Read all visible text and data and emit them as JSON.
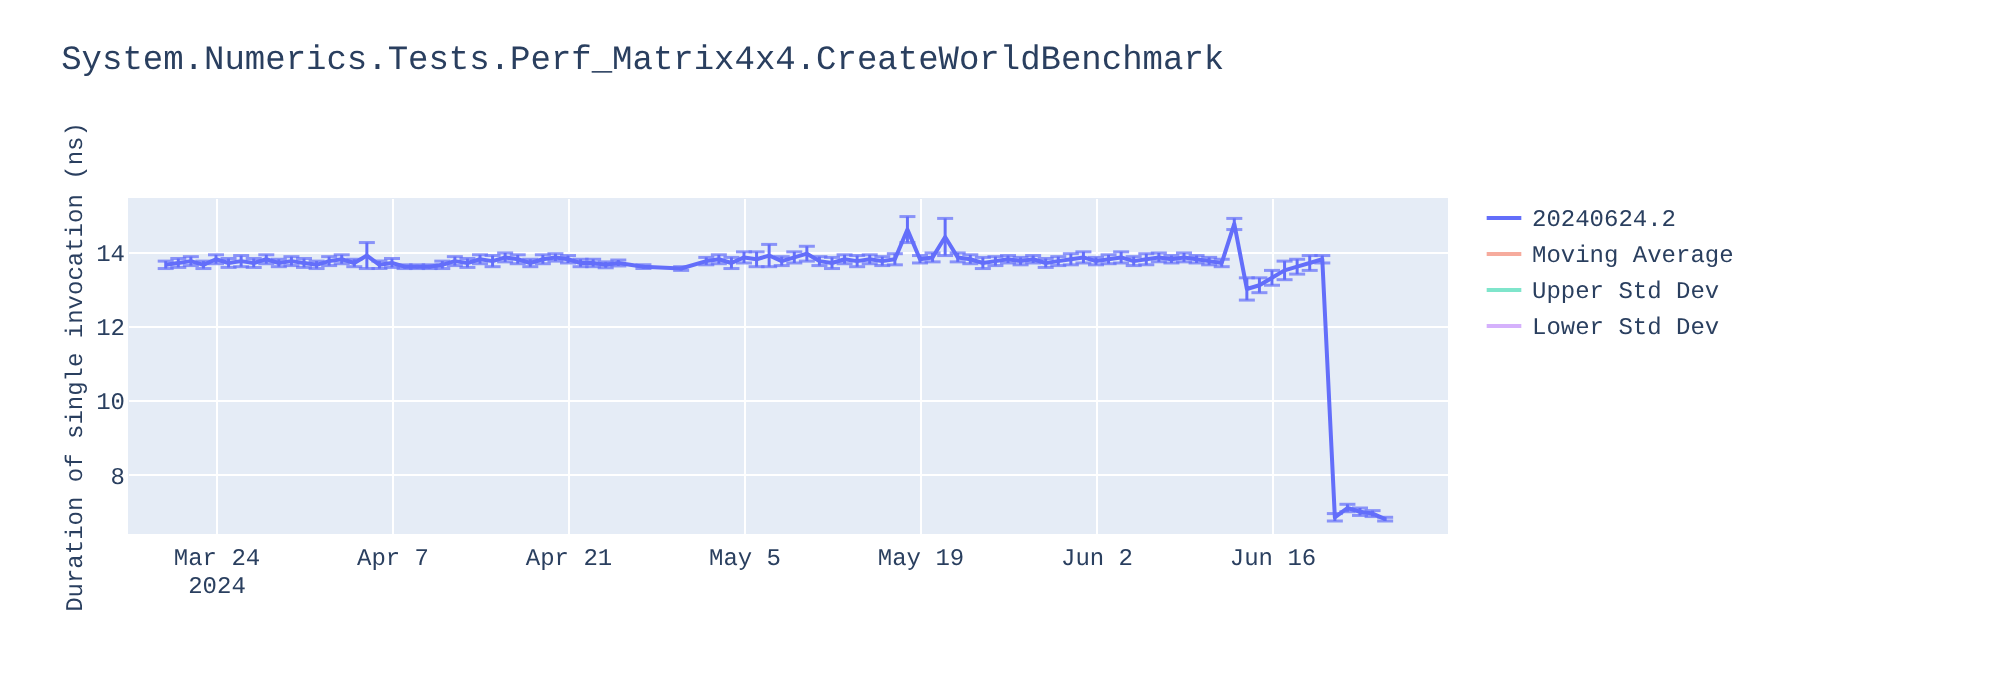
{
  "chart_data": {
    "type": "line",
    "title": "System.Numerics.Tests.Perf_Matrix4x4.CreateWorldBenchmark",
    "ylabel": "Duration of single invocation (ns)",
    "x": [
      "2024-03-20",
      "2024-03-21",
      "2024-03-22",
      "2024-03-23",
      "2024-03-24",
      "2024-03-25",
      "2024-03-26",
      "2024-03-27",
      "2024-03-28",
      "2024-03-29",
      "2024-03-30",
      "2024-03-31",
      "2024-04-01",
      "2024-04-02",
      "2024-04-03",
      "2024-04-04",
      "2024-04-05",
      "2024-04-06",
      "2024-04-07",
      "2024-04-08",
      "2024-04-09",
      "2024-04-10",
      "2024-04-11",
      "2024-04-12",
      "2024-04-13",
      "2024-04-14",
      "2024-04-15",
      "2024-04-16",
      "2024-04-17",
      "2024-04-18",
      "2024-04-19",
      "2024-04-20",
      "2024-04-21",
      "2024-04-22",
      "2024-04-23",
      "2024-04-24",
      "2024-04-25",
      "2024-04-27",
      "2024-04-30",
      "2024-05-02",
      "2024-05-03",
      "2024-05-04",
      "2024-05-05",
      "2024-05-06",
      "2024-05-07",
      "2024-05-08",
      "2024-05-09",
      "2024-05-10",
      "2024-05-11",
      "2024-05-12",
      "2024-05-13",
      "2024-05-14",
      "2024-05-15",
      "2024-05-16",
      "2024-05-17",
      "2024-05-18",
      "2024-05-19",
      "2024-05-20",
      "2024-05-21",
      "2024-05-22",
      "2024-05-23",
      "2024-05-24",
      "2024-05-25",
      "2024-05-26",
      "2024-05-27",
      "2024-05-28",
      "2024-05-29",
      "2024-05-30",
      "2024-05-31",
      "2024-06-01",
      "2024-06-02",
      "2024-06-03",
      "2024-06-04",
      "2024-06-05",
      "2024-06-06",
      "2024-06-07",
      "2024-06-08",
      "2024-06-09",
      "2024-06-10",
      "2024-06-11",
      "2024-06-12",
      "2024-06-13",
      "2024-06-14",
      "2024-06-15",
      "2024-06-16",
      "2024-06-17",
      "2024-06-18",
      "2024-06-19",
      "2024-06-20",
      "2024-06-21",
      "2024-06-22",
      "2024-06-23",
      "2024-06-24",
      "2024-06-25"
    ],
    "series": [
      {
        "name": "20240624.2",
        "color": "#636efa",
        "values": [
          13.65,
          13.7,
          13.75,
          13.65,
          13.8,
          13.7,
          13.75,
          13.7,
          13.8,
          13.7,
          13.75,
          13.7,
          13.65,
          13.75,
          13.8,
          13.7,
          13.9,
          13.65,
          13.7,
          13.6,
          13.6,
          13.6,
          13.65,
          13.75,
          13.7,
          13.8,
          13.75,
          13.85,
          13.8,
          13.7,
          13.8,
          13.85,
          13.8,
          13.7,
          13.7,
          13.65,
          13.7,
          13.6,
          13.55,
          13.75,
          13.8,
          13.7,
          13.85,
          13.8,
          13.9,
          13.75,
          13.85,
          13.95,
          13.75,
          13.7,
          13.8,
          13.75,
          13.8,
          13.75,
          13.8,
          14.6,
          13.8,
          13.85,
          14.4,
          13.85,
          13.8,
          13.7,
          13.75,
          13.8,
          13.75,
          13.8,
          13.7,
          13.75,
          13.8,
          13.85,
          13.75,
          13.8,
          13.85,
          13.75,
          13.8,
          13.85,
          13.8,
          13.85,
          13.8,
          13.75,
          13.7,
          14.75,
          13.0,
          13.1,
          13.3,
          13.5,
          13.6,
          13.7,
          13.8,
          6.85,
          7.1,
          7.0,
          6.95,
          6.8
        ],
        "errors": [
          0.1,
          0.12,
          0.12,
          0.1,
          0.12,
          0.12,
          0.15,
          0.12,
          0.12,
          0.1,
          0.12,
          0.12,
          0.1,
          0.12,
          0.12,
          0.1,
          0.35,
          0.1,
          0.12,
          0.05,
          0.05,
          0.05,
          0.1,
          0.12,
          0.12,
          0.12,
          0.15,
          0.12,
          0.12,
          0.1,
          0.12,
          0.1,
          0.1,
          0.1,
          0.1,
          0.08,
          0.08,
          0.05,
          0.05,
          0.1,
          0.12,
          0.15,
          0.15,
          0.2,
          0.3,
          0.12,
          0.15,
          0.2,
          0.12,
          0.15,
          0.12,
          0.15,
          0.12,
          0.12,
          0.15,
          0.35,
          0.1,
          0.12,
          0.5,
          0.12,
          0.12,
          0.15,
          0.12,
          0.1,
          0.1,
          0.1,
          0.12,
          0.12,
          0.15,
          0.15,
          0.1,
          0.12,
          0.15,
          0.12,
          0.15,
          0.12,
          0.1,
          0.12,
          0.1,
          0.1,
          0.1,
          0.15,
          0.3,
          0.2,
          0.2,
          0.25,
          0.2,
          0.2,
          0.1,
          0.1,
          0.1,
          0.1,
          0.08,
          0.05
        ]
      },
      {
        "name": "Moving Average",
        "color": "#f6ab9d",
        "values": [
          null,
          null,
          null,
          null,
          null,
          null,
          null,
          null,
          null,
          null,
          null,
          null,
          null,
          null,
          null,
          null,
          null,
          null,
          null,
          null,
          null,
          null,
          null,
          null,
          null,
          null,
          null,
          null,
          null,
          null,
          null,
          null,
          null,
          null,
          null,
          null,
          null,
          null,
          null,
          null,
          null,
          null,
          null,
          null,
          null,
          null,
          null,
          null,
          null,
          null,
          null,
          null,
          null,
          null,
          null,
          null,
          null,
          null,
          null,
          null,
          null,
          null,
          null,
          null,
          null,
          null,
          null,
          null,
          null,
          null,
          null,
          null,
          null,
          null,
          null,
          null,
          null,
          null,
          null,
          null,
          null,
          null,
          null,
          null,
          null,
          null,
          null,
          null,
          null,
          null,
          null,
          null,
          null,
          null
        ]
      },
      {
        "name": "Upper Std Dev",
        "color": "#7fe5cb",
        "values": [
          null,
          null,
          null,
          null,
          null,
          null,
          null,
          null,
          null,
          null,
          null,
          null,
          null,
          null,
          null,
          null,
          null,
          null,
          null,
          null,
          null,
          null,
          null,
          null,
          null,
          null,
          null,
          null,
          null,
          null,
          null,
          null,
          null,
          null,
          null,
          null,
          null,
          null,
          null,
          null,
          null,
          null,
          null,
          null,
          null,
          null,
          null,
          null,
          null,
          null,
          null,
          null,
          null,
          null,
          null,
          null,
          null,
          null,
          null,
          null,
          null,
          null,
          null,
          null,
          null,
          null,
          null,
          null,
          null,
          null,
          null,
          null,
          null,
          null,
          null,
          null,
          null,
          null,
          null,
          null,
          null,
          null,
          null,
          null,
          null,
          null,
          null,
          null,
          null,
          null,
          null,
          null,
          null,
          null
        ]
      },
      {
        "name": "Lower Std Dev",
        "color": "#d5b1fc",
        "values": [
          null,
          null,
          null,
          null,
          null,
          null,
          null,
          null,
          null,
          null,
          null,
          null,
          null,
          null,
          null,
          null,
          null,
          null,
          null,
          null,
          null,
          null,
          null,
          null,
          null,
          null,
          null,
          null,
          null,
          null,
          null,
          null,
          null,
          null,
          null,
          null,
          null,
          null,
          null,
          null,
          null,
          null,
          null,
          null,
          null,
          null,
          null,
          null,
          null,
          null,
          null,
          null,
          null,
          null,
          null,
          null,
          null,
          null,
          null,
          null,
          null,
          null,
          null,
          null,
          null,
          null,
          null,
          null,
          null,
          null,
          null,
          null,
          null,
          null,
          null,
          null,
          null,
          null,
          null,
          null,
          null,
          null,
          null,
          null,
          null,
          null,
          null,
          null,
          null,
          null,
          null,
          null,
          null,
          null
        ]
      }
    ],
    "xlim": [
      "2024-03-17",
      "2024-06-30"
    ],
    "xticks": [
      {
        "value": "2024-03-24",
        "label": "Mar 24\n2024"
      },
      {
        "value": "2024-04-07",
        "label": "Apr 7"
      },
      {
        "value": "2024-04-21",
        "label": "Apr 21"
      },
      {
        "value": "2024-05-05",
        "label": "May 5"
      },
      {
        "value": "2024-05-19",
        "label": "May 19"
      },
      {
        "value": "2024-06-02",
        "label": "Jun 2"
      },
      {
        "value": "2024-06-16",
        "label": "Jun 16"
      }
    ],
    "ylim": [
      6.4,
      15.45
    ],
    "yticks": [
      8,
      10,
      12,
      14
    ],
    "grid": true,
    "legend": "top right",
    "line_style": "solid",
    "marker": "none"
  }
}
